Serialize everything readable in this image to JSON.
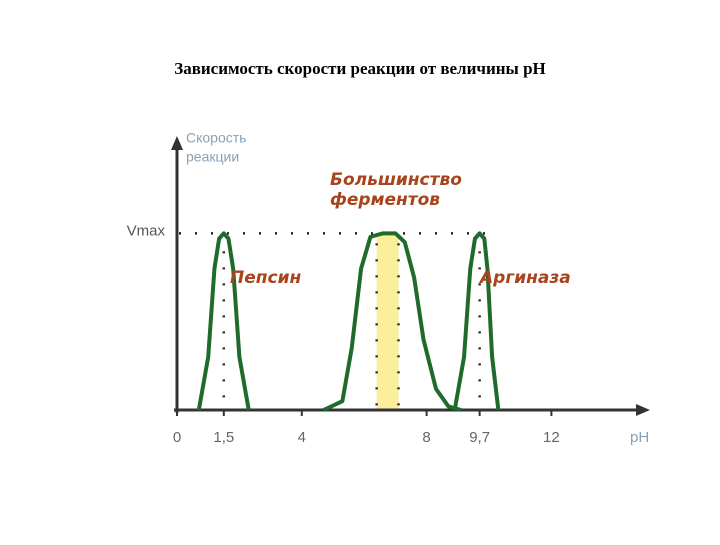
{
  "chart_data": {
    "type": "line",
    "title": "Зависимость скорости реакции от величины рН",
    "y_label": [
      "Скорость",
      "реакции"
    ],
    "x_label": "pH",
    "xlim": [
      0,
      15
    ],
    "ylim": [
      0,
      1.5
    ],
    "xticks": [
      0,
      {
        "value": 1.5,
        "label": "1,5"
      },
      4,
      8,
      {
        "value": 9.7,
        "label": "9,7"
      },
      12
    ],
    "yticks": [
      {
        "value": 1,
        "label": "Vmax"
      }
    ],
    "grid": true,
    "highlight_band": [
      6.4,
      7.1
    ],
    "highlight_color": "#fbee9a",
    "label_color": "#a8431c",
    "series": [
      {
        "name": "Пепсин",
        "color": "#1e6b2c",
        "x": [
          0.7,
          1.0,
          1.2,
          1.35,
          1.5,
          1.65,
          1.8,
          2.0,
          2.3
        ],
        "values": [
          0,
          0.3,
          0.8,
          0.97,
          1,
          0.97,
          0.8,
          0.3,
          0
        ]
      },
      {
        "name": "Большинство ферментов",
        "color": "#1e6b2c",
        "x": [
          4.7,
          5.3,
          5.6,
          5.9,
          6.2,
          6.6,
          7.0,
          7.3,
          7.6,
          7.9,
          8.3,
          8.7,
          9.1
        ],
        "values": [
          0,
          0.05,
          0.35,
          0.8,
          0.98,
          1,
          1,
          0.95,
          0.75,
          0.4,
          0.12,
          0.02,
          0
        ]
      },
      {
        "name": "Аргиназа",
        "color": "#1e6b2c",
        "x": [
          8.9,
          9.2,
          9.4,
          9.55,
          9.7,
          9.85,
          9.95,
          10.1,
          10.3
        ],
        "values": [
          0,
          0.3,
          0.8,
          0.97,
          1,
          0.97,
          0.8,
          0.3,
          0
        ]
      }
    ]
  }
}
